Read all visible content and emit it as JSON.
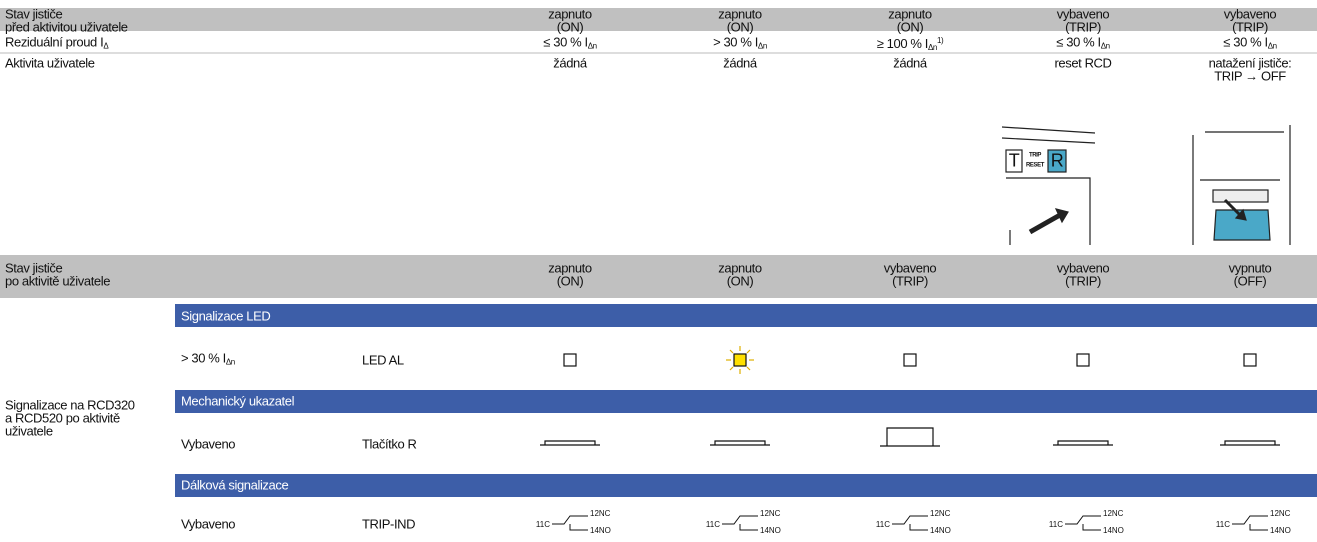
{
  "header_before": {
    "label": [
      "Stav jističe",
      "před aktivitou uživatele"
    ],
    "columns": [
      [
        "zapnuto",
        "(ON)"
      ],
      [
        "zapnuto",
        "(ON)"
      ],
      [
        "zapnuto",
        "(ON)"
      ],
      [
        "vybaveno",
        "(TRIP)"
      ],
      [
        "vybaveno",
        "(TRIP)"
      ]
    ]
  },
  "residual": {
    "label": {
      "main": "Reziduální proud I",
      "sub": "Δ"
    },
    "values": [
      {
        "main": "≤ 30 % I",
        "sub": "Δn"
      },
      {
        "main": "> 30 % I",
        "sub": "Δn"
      },
      {
        "main": "≥ 100 % I",
        "sub": "Δn",
        "sup": "1)"
      },
      {
        "main": "≤ 30 % I",
        "sub": "Δn"
      },
      {
        "main": "≤ 30 % I",
        "sub": "Δn"
      }
    ]
  },
  "activity": {
    "label": "Aktivita uživatele",
    "values": [
      [
        "žádná"
      ],
      [
        "žádná"
      ],
      [
        "žádná"
      ],
      [
        "reset RCD"
      ],
      [
        "natažení jističe:",
        "TRIP → OFF"
      ]
    ]
  },
  "reset_illustration": {
    "t": "T",
    "trip": "TRIP",
    "reset": "RESET",
    "r": "R"
  },
  "header_after": {
    "label": [
      "Stav jističe",
      "po aktivitě uživatele"
    ],
    "columns": [
      [
        "zapnuto",
        "(ON)"
      ],
      [
        "zapnuto",
        "(ON)"
      ],
      [
        "vybaveno",
        "(TRIP)"
      ],
      [
        "vybaveno",
        "(TRIP)"
      ],
      [
        "vypnuto",
        "(OFF)"
      ]
    ]
  },
  "signaling": {
    "label": [
      "Signalizace na RCD320",
      "a RCD520 po aktivitě",
      "uživatele"
    ],
    "sections": [
      {
        "title": "Signalizace LED",
        "condition": {
          "main": "> 30 % I",
          "sub": "Δn"
        },
        "element": "LED AL"
      },
      {
        "title": "Mechanický ukazatel",
        "condition": {
          "main": "Vybaveno"
        },
        "element": "Tlačítko R"
      },
      {
        "title": "Dálková signalizace",
        "condition": {
          "main": "Vybaveno"
        },
        "element": "TRIP-IND"
      }
    ],
    "contacts": [
      {
        "common": "11C",
        "nc": "12NC",
        "no": "14NO"
      },
      {
        "common": "11C",
        "nc": "12NC",
        "no": "14NO"
      },
      {
        "common": "11C",
        "nc": "12NC",
        "no": "14NO"
      },
      {
        "common": "11C",
        "nc": "12NC",
        "no": "14NO"
      },
      {
        "common": "11C",
        "nc": "12NC",
        "no": "14NO"
      }
    ]
  }
}
